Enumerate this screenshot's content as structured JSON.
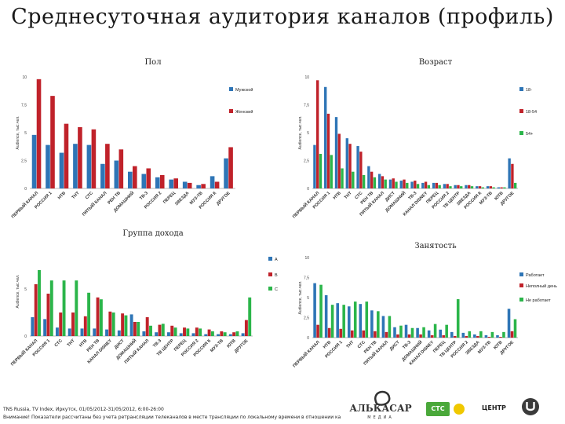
{
  "title": "Среднесуточная аудитория каналов (профиль)",
  "footnote_1": "TNS Russia, TV Index, Иркутск, 01/05/2012-31/05/2012, 6:00-26:00",
  "footnote_2": "Внимание! Показатели рассчитаны без учета ретрансляции телеканалов в месте трансляции по локальному времени в отношении каждого телеканала.",
  "logos": {
    "alkasar_main": "АЛЬКАСАР",
    "alkasar_sub": "МЕДИА",
    "ctc_label": "СТС",
    "center_label": "ЦЕНТР"
  },
  "colors": {
    "blue": "#2E75B6",
    "red": "#C0222A",
    "green": "#2BB54A"
  },
  "chart_data": [
    {
      "type": "bar",
      "title": "Пол",
      "ylabel": "Audience, тыс.чел.",
      "ylim": [
        0,
        10
      ],
      "yticks": [
        "0",
        "2,5",
        "5",
        "7,5",
        "10"
      ],
      "legend_position": "right",
      "categories": [
        "ПЕРВЫЙ КАНАЛ",
        "РОССИЯ 1",
        "НТВ",
        "ТНТ",
        "СТС",
        "ПЯТЫЙ КАНАЛ",
        "РЕН ТВ",
        "ДОМАШНИЙ",
        "ТВ-3",
        "РОССИЯ 2",
        "ПЕРЕЦ",
        "ЗВЕЗДА",
        "МУЗ-ТВ",
        "РОССИЯ К",
        "ДРУГОЕ"
      ],
      "series": [
        {
          "name": "Мужской",
          "color": "blue",
          "values": [
            4.8,
            3.9,
            3.2,
            4.0,
            3.9,
            2.2,
            2.5,
            1.5,
            1.3,
            1.0,
            0.8,
            0.6,
            0.3,
            1.1,
            2.7
          ]
        },
        {
          "name": "Женский",
          "color": "red",
          "values": [
            9.8,
            8.3,
            5.8,
            5.5,
            5.3,
            4.0,
            3.5,
            2.0,
            1.8,
            1.2,
            0.9,
            0.5,
            0.4,
            0.6,
            3.7
          ]
        }
      ]
    },
    {
      "type": "bar",
      "title": "Возраст",
      "ylabel": "Audience, тыс.чел.",
      "ylim": [
        0,
        10
      ],
      "yticks": [
        "0",
        "2,5",
        "5",
        "7,5",
        "10"
      ],
      "legend_position": "right",
      "categories": [
        "ПЕРВЫЙ КАНАЛ",
        "РОССИЯ 1",
        "НТВ",
        "ТНТ",
        "СТС",
        "РЕН ТВ",
        "ПЯТЫЙ КАНАЛ",
        "ДИСТ",
        "ДОМАШНИЙ",
        "ТВ-3",
        "КАНАЛ DISNEY",
        "ПЕРЕЦ",
        "РОССИЯ 2",
        "ТВ ЦЕНТР",
        "ЗВЕЗДА",
        "РОССИЯ К",
        "МУЗ-ТВ",
        "ЮТВ",
        "ДРУГОЕ"
      ],
      "series": [
        {
          "name": "18-",
          "color": "blue",
          "values": [
            3.9,
            9.1,
            6.4,
            4.5,
            3.8,
            2.0,
            1.3,
            0.8,
            0.7,
            0.6,
            0.5,
            0.5,
            0.4,
            0.3,
            0.3,
            0.2,
            0.2,
            0.1,
            2.7
          ]
        },
        {
          "name": "18-54",
          "color": "red",
          "values": [
            9.7,
            6.7,
            4.9,
            4.0,
            3.3,
            1.5,
            1.1,
            0.9,
            0.8,
            0.7,
            0.6,
            0.5,
            0.4,
            0.3,
            0.3,
            0.2,
            0.2,
            0.1,
            2.2
          ]
        },
        {
          "name": "54+",
          "color": "green",
          "values": [
            3.1,
            3.0,
            1.8,
            1.5,
            1.2,
            1.0,
            0.8,
            0.6,
            0.5,
            0.4,
            0.3,
            0.3,
            0.2,
            0.2,
            0.2,
            0.1,
            0.1,
            0.1,
            0.5
          ]
        }
      ]
    },
    {
      "type": "bar",
      "title": "Группа дохода",
      "ylabel": "Audience, тыс.чел.",
      "ylim": [
        0,
        9.5
      ],
      "yticks": [
        "0",
        "5"
      ],
      "legend_position": "right",
      "categories": [
        "ПЕРВЫЙ КАНАЛ",
        "РОССИЯ 1",
        "СТС",
        "ТНТ",
        "НТВ",
        "РЕН ТВ",
        "КАНАЛ DISNEY",
        "ДИСТ",
        "ДОМАШНИЙ",
        "ПЯТЫЙ КАНАЛ",
        "ТВ-3",
        "ТВ ЦЕНТР",
        "ПЕРЕЦ",
        "РОССИЯ 2",
        "РОССИЯ К",
        "МУЗ-ТВ",
        "ЮТВ",
        "ДРУГОЕ"
      ],
      "series": [
        {
          "name": "A",
          "color": "blue",
          "values": [
            2.0,
            1.8,
            0.9,
            0.8,
            0.8,
            0.8,
            0.7,
            0.6,
            2.3,
            0.5,
            0.4,
            0.4,
            0.3,
            0.3,
            0.2,
            0.2,
            0.2,
            0.3
          ]
        },
        {
          "name": "B",
          "color": "red",
          "values": [
            5.5,
            4.5,
            2.5,
            2.5,
            2.1,
            4.1,
            2.6,
            2.4,
            1.5,
            2.0,
            1.2,
            1.1,
            0.9,
            0.9,
            0.7,
            0.5,
            0.4,
            1.7
          ]
        },
        {
          "name": "C",
          "color": "green",
          "values": [
            7.0,
            5.9,
            5.9,
            5.9,
            4.6,
            3.9,
            2.5,
            2.2,
            1.5,
            1.1,
            1.3,
            0.9,
            0.8,
            0.8,
            0.5,
            0.4,
            0.5,
            4.1
          ]
        }
      ]
    },
    {
      "type": "bar",
      "title": "Занятость",
      "ylabel": "Audience, тыс.чел.",
      "ylim": [
        0,
        10
      ],
      "yticks": [
        "0",
        "2,5",
        "5",
        "7,5",
        "10"
      ],
      "legend_position": "right",
      "categories": [
        "ПЕРВЫЙ КАНАЛ",
        "НТВ",
        "РОССИЯ 1",
        "ТНТ",
        "СТС",
        "РЕН ТВ",
        "ПЯТЫЙ КАНАЛ",
        "ДИСТ",
        "ТВ-3",
        "ДОМАШНИЙ",
        "КАНАЛ DISNEY",
        "ПЕРЕЦ",
        "ТВ ЦЕНТР",
        "РОССИЯ 2",
        "ЗВЕЗДА",
        "МУЗ-ТВ",
        "ЮТВ",
        "ДРУГОЕ"
      ],
      "series": [
        {
          "name": "Работает",
          "color": "blue",
          "values": [
            6.8,
            5.3,
            4.3,
            3.9,
            4.2,
            3.4,
            2.7,
            1.3,
            1.6,
            1.2,
            0.9,
            1.0,
            0.7,
            0.6,
            0.4,
            0.3,
            0.3,
            3.6
          ]
        },
        {
          "name": "Неполный день",
          "color": "red",
          "values": [
            1.6,
            1.2,
            1.1,
            0.9,
            0.9,
            0.8,
            0.7,
            0.4,
            0.4,
            0.4,
            0.3,
            0.3,
            0.2,
            0.2,
            0.2,
            0.1,
            0.1,
            0.8
          ]
        },
        {
          "name": "Не работает",
          "color": "green",
          "values": [
            6.6,
            4.1,
            4.1,
            4.5,
            4.5,
            3.3,
            2.7,
            1.5,
            1.2,
            1.3,
            1.7,
            1.6,
            4.8,
            0.8,
            0.8,
            0.7,
            0.7,
            2.3
          ]
        }
      ]
    }
  ]
}
